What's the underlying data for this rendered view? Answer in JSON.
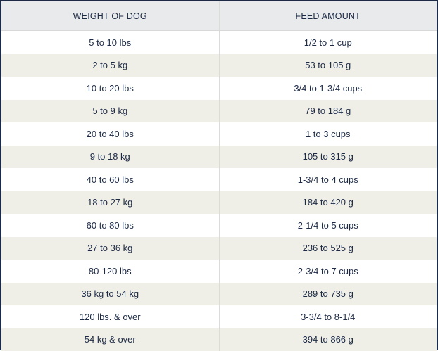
{
  "table": {
    "headers": [
      "WEIGHT OF DOG",
      "FEED AMOUNT"
    ],
    "rows": [
      [
        "5 to 10 lbs",
        "1/2 to 1 cup"
      ],
      [
        "2 to 5 kg",
        "53 to 105 g"
      ],
      [
        "10 to 20 lbs",
        "3/4 to 1-3/4 cups"
      ],
      [
        "5 to 9 kg",
        "79 to 184 g"
      ],
      [
        "20 to 40 lbs",
        "1 to 3 cups"
      ],
      [
        "9 to 18 kg",
        "105 to 315 g"
      ],
      [
        "40 to 60 lbs",
        "1-3/4 to 4 cups"
      ],
      [
        "18 to 27 kg",
        "184 to 420 g"
      ],
      [
        "60 to 80 lbs",
        "2-1/4 to 5 cups"
      ],
      [
        "27 to 36 kg",
        "236 to 525 g"
      ],
      [
        "80-120 lbs",
        "2-3/4 to 7 cups"
      ],
      [
        "36 kg to 54 kg",
        "289 to 735 g"
      ],
      [
        "120 lbs. & over",
        "3-3/4 to 8-1/4"
      ],
      [
        "54 kg & over",
        "394 to 866 g"
      ]
    ]
  }
}
